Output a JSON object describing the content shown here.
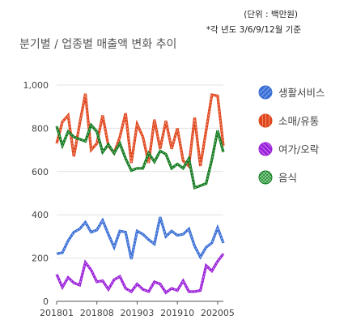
{
  "notes": {
    "unit": "(단위 : 백만원)",
    "base": "*각 년도 3/6/9/12월 기준"
  },
  "chart_data": {
    "type": "line",
    "title": "분기별 / 업종별 매출액 변화 추이",
    "xlabel": "",
    "ylabel": "",
    "ylim": [
      0,
      1000
    ],
    "yticks": [
      "0",
      "200",
      "400",
      "600",
      "800",
      "1,000"
    ],
    "xticks": [
      "201801",
      "201808",
      "201903",
      "201910",
      "202005"
    ],
    "grid": true,
    "legend_position": "right",
    "x": [
      "201801",
      "201802",
      "201803",
      "201804",
      "201805",
      "201806",
      "201807",
      "201808",
      "201809",
      "201810",
      "201811",
      "201812",
      "201901",
      "201902",
      "201903",
      "201904",
      "201905",
      "201906",
      "201907",
      "201908",
      "201909",
      "201910",
      "201911",
      "201912",
      "202001",
      "202002",
      "202003",
      "202004",
      "202005",
      "202006"
    ],
    "series": [
      {
        "name": "생활서비스",
        "color": "#3a6fd6",
        "values": [
          220,
          225,
          280,
          320,
          335,
          365,
          320,
          330,
          375,
          310,
          250,
          325,
          320,
          195,
          325,
          310,
          285,
          265,
          390,
          300,
          325,
          305,
          310,
          335,
          255,
          205,
          250,
          270,
          340,
          270
        ]
      },
      {
        "name": "소매/유통",
        "color": "#e0461c",
        "values": [
          730,
          830,
          860,
          670,
          820,
          960,
          700,
          730,
          860,
          720,
          685,
          760,
          870,
          640,
          820,
          760,
          640,
          840,
          705,
          835,
          705,
          800,
          650,
          625,
          850,
          625,
          790,
          955,
          950,
          720
        ]
      },
      {
        "name": "여가/오락",
        "color": "#9a1fd9",
        "values": [
          125,
          65,
          110,
          85,
          75,
          180,
          145,
          90,
          95,
          55,
          100,
          115,
          60,
          45,
          80,
          55,
          45,
          90,
          80,
          40,
          60,
          50,
          95,
          45,
          45,
          50,
          165,
          140,
          185,
          220
        ]
      },
      {
        "name": "음식",
        "color": "#127a1e",
        "values": [
          810,
          720,
          785,
          760,
          750,
          740,
          815,
          785,
          690,
          725,
          685,
          730,
          660,
          605,
          615,
          615,
          685,
          645,
          695,
          680,
          615,
          635,
          615,
          660,
          525,
          535,
          545,
          655,
          790,
          690
        ]
      }
    ]
  }
}
